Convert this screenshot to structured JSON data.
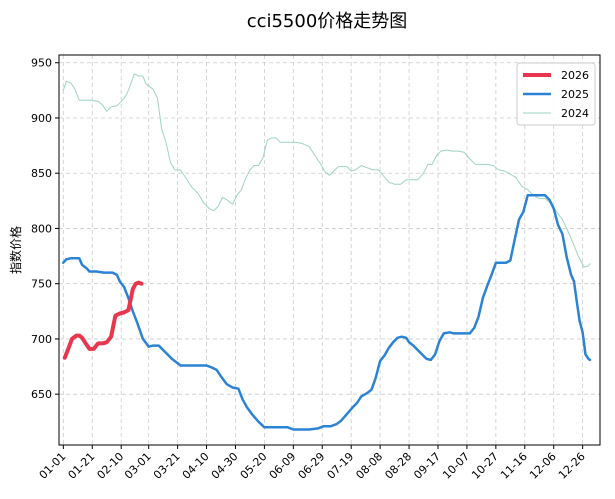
{
  "chart_data": {
    "type": "line",
    "title": "cci5500价格走势图",
    "xlabel": "",
    "ylabel": "指数价格",
    "x_ticks": [
      "01-01",
      "01-21",
      "02-10",
      "03-01",
      "03-21",
      "04-10",
      "04-30",
      "05-20",
      "06-09",
      "06-29",
      "07-19",
      "08-08",
      "08-28",
      "09-17",
      "10-07",
      "10-27",
      "11-16",
      "12-06",
      "12-26"
    ],
    "x_domain": [
      "01-01",
      "12-31"
    ],
    "y_ticks": [
      650,
      700,
      750,
      800,
      850,
      900,
      950
    ],
    "ylim": [
      604,
      957
    ],
    "grid": true,
    "legend_position": "top-right",
    "series": [
      {
        "name": "2026",
        "color": "#e8364f",
        "line_width": 4,
        "points": [
          [
            "01-02",
            683
          ],
          [
            "01-05",
            693
          ],
          [
            "01-07",
            700
          ],
          [
            "01-10",
            703
          ],
          [
            "01-12",
            703
          ],
          [
            "01-14",
            701
          ],
          [
            "01-16",
            697
          ],
          [
            "01-19",
            691
          ],
          [
            "01-22",
            691
          ],
          [
            "01-25",
            696
          ],
          [
            "01-28",
            696
          ],
          [
            "01-31",
            697
          ],
          [
            "02-03",
            702
          ],
          [
            "02-06",
            721
          ],
          [
            "02-09",
            723
          ],
          [
            "02-12",
            724
          ],
          [
            "02-15",
            726
          ],
          [
            "02-18",
            745
          ],
          [
            "02-20",
            750
          ],
          [
            "02-22",
            751
          ],
          [
            "02-24",
            750
          ]
        ]
      },
      {
        "name": "2025",
        "color": "#2b83d6",
        "line_width": 2.5,
        "points": [
          [
            "01-01",
            769
          ],
          [
            "01-03",
            772
          ],
          [
            "01-06",
            773
          ],
          [
            "01-08",
            773
          ],
          [
            "01-12",
            773
          ],
          [
            "01-14",
            767
          ],
          [
            "01-17",
            764
          ],
          [
            "01-19",
            761
          ],
          [
            "01-24",
            761
          ],
          [
            "01-29",
            760
          ],
          [
            "02-04",
            760
          ],
          [
            "02-07",
            758
          ],
          [
            "02-09",
            752
          ],
          [
            "02-12",
            747
          ],
          [
            "02-15",
            737
          ],
          [
            "02-18",
            725
          ],
          [
            "02-21",
            715
          ],
          [
            "02-25",
            700
          ],
          [
            "03-01",
            693
          ],
          [
            "03-04",
            694
          ],
          [
            "03-08",
            694
          ],
          [
            "03-11",
            690
          ],
          [
            "03-14",
            686
          ],
          [
            "03-17",
            682
          ],
          [
            "03-20",
            679
          ],
          [
            "03-23",
            676
          ],
          [
            "03-28",
            676
          ],
          [
            "04-04",
            676
          ],
          [
            "04-10",
            676
          ],
          [
            "04-14",
            674
          ],
          [
            "04-17",
            672
          ],
          [
            "04-20",
            666
          ],
          [
            "04-24",
            659
          ],
          [
            "04-28",
            656
          ],
          [
            "05-02",
            655
          ],
          [
            "05-05",
            645
          ],
          [
            "05-08",
            638
          ],
          [
            "05-12",
            631
          ],
          [
            "05-16",
            625
          ],
          [
            "05-20",
            620
          ],
          [
            "05-28",
            620
          ],
          [
            "06-05",
            620
          ],
          [
            "06-09",
            618
          ],
          [
            "06-14",
            618
          ],
          [
            "06-20",
            618
          ],
          [
            "06-26",
            619
          ],
          [
            "06-30",
            621
          ],
          [
            "07-05",
            621
          ],
          [
            "07-09",
            623
          ],
          [
            "07-12",
            626
          ],
          [
            "07-16",
            632
          ],
          [
            "07-20",
            638
          ],
          [
            "07-23",
            642
          ],
          [
            "07-26",
            648
          ],
          [
            "07-30",
            651
          ],
          [
            "08-02",
            654
          ],
          [
            "08-05",
            665
          ],
          [
            "08-08",
            680
          ],
          [
            "08-11",
            685
          ],
          [
            "08-14",
            692
          ],
          [
            "08-17",
            697
          ],
          [
            "08-20",
            701
          ],
          [
            "08-23",
            702
          ],
          [
            "08-26",
            701
          ],
          [
            "08-28",
            697
          ],
          [
            "08-31",
            694
          ],
          [
            "09-03",
            690
          ],
          [
            "09-06",
            686
          ],
          [
            "09-09",
            682
          ],
          [
            "09-12",
            681
          ],
          [
            "09-15",
            686
          ],
          [
            "09-18",
            698
          ],
          [
            "09-21",
            705
          ],
          [
            "09-25",
            706
          ],
          [
            "09-28",
            705
          ],
          [
            "10-01",
            705
          ],
          [
            "10-05",
            705
          ],
          [
            "10-09",
            705
          ],
          [
            "10-12",
            710
          ],
          [
            "10-15",
            720
          ],
          [
            "10-18",
            737
          ],
          [
            "10-21",
            748
          ],
          [
            "10-24",
            758
          ],
          [
            "10-27",
            769
          ],
          [
            "10-31",
            769
          ],
          [
            "11-03",
            769
          ],
          [
            "11-06",
            771
          ],
          [
            "11-09",
            790
          ],
          [
            "11-12",
            808
          ],
          [
            "11-15",
            815
          ],
          [
            "11-18",
            830
          ],
          [
            "11-22",
            830
          ],
          [
            "11-26",
            830
          ],
          [
            "11-30",
            830
          ],
          [
            "12-03",
            826
          ],
          [
            "12-06",
            818
          ],
          [
            "12-09",
            803
          ],
          [
            "12-12",
            795
          ],
          [
            "12-15",
            774
          ],
          [
            "12-18",
            758
          ],
          [
            "12-20",
            752
          ],
          [
            "12-22",
            733
          ],
          [
            "12-24",
            716
          ],
          [
            "12-26",
            706
          ],
          [
            "12-28",
            686
          ],
          [
            "12-30",
            682
          ],
          [
            "12-31",
            681
          ]
        ]
      },
      {
        "name": "2024",
        "color": "#9fd5be",
        "line_width": 1,
        "points": [
          [
            "01-01",
            925
          ],
          [
            "01-03",
            933
          ],
          [
            "01-06",
            932
          ],
          [
            "01-09",
            926
          ],
          [
            "01-12",
            916
          ],
          [
            "01-16",
            916
          ],
          [
            "01-20",
            916
          ],
          [
            "01-25",
            915
          ],
          [
            "01-28",
            912
          ],
          [
            "01-31",
            906
          ],
          [
            "02-03",
            910
          ],
          [
            "02-07",
            911
          ],
          [
            "02-11",
            916
          ],
          [
            "02-14",
            922
          ],
          [
            "02-17",
            932
          ],
          [
            "02-19",
            940
          ],
          [
            "02-22",
            938
          ],
          [
            "02-25",
            938
          ],
          [
            "02-27",
            931
          ],
          [
            "03-01",
            929
          ],
          [
            "03-04",
            926
          ],
          [
            "03-07",
            918
          ],
          [
            "03-10",
            890
          ],
          [
            "03-13",
            878
          ],
          [
            "03-16",
            860
          ],
          [
            "03-19",
            853
          ],
          [
            "03-23",
            853
          ],
          [
            "03-27",
            845
          ],
          [
            "03-31",
            837
          ],
          [
            "04-04",
            832
          ],
          [
            "04-08",
            823
          ],
          [
            "04-12",
            818
          ],
          [
            "04-15",
            816
          ],
          [
            "04-18",
            820
          ],
          [
            "04-21",
            828
          ],
          [
            "04-24",
            826
          ],
          [
            "04-28",
            822
          ],
          [
            "05-01",
            830
          ],
          [
            "05-04",
            835
          ],
          [
            "05-07",
            845
          ],
          [
            "05-10",
            853
          ],
          [
            "05-13",
            857
          ],
          [
            "05-16",
            857
          ],
          [
            "05-19",
            864
          ],
          [
            "05-22",
            880
          ],
          [
            "05-25",
            882
          ],
          [
            "05-28",
            882
          ],
          [
            "05-31",
            878
          ],
          [
            "06-05",
            878
          ],
          [
            "06-10",
            878
          ],
          [
            "06-15",
            877
          ],
          [
            "06-20",
            874
          ],
          [
            "06-24",
            866
          ],
          [
            "06-28",
            858
          ],
          [
            "07-01",
            851
          ],
          [
            "07-04",
            848
          ],
          [
            "07-07",
            852
          ],
          [
            "07-10",
            856
          ],
          [
            "07-13",
            856
          ],
          [
            "07-16",
            856
          ],
          [
            "07-19",
            852
          ],
          [
            "07-22",
            853
          ],
          [
            "07-26",
            857
          ],
          [
            "07-30",
            855
          ],
          [
            "08-03",
            853
          ],
          [
            "08-07",
            853
          ],
          [
            "08-10",
            848
          ],
          [
            "08-14",
            842
          ],
          [
            "08-18",
            840
          ],
          [
            "08-22",
            840
          ],
          [
            "08-26",
            844
          ],
          [
            "08-30",
            844
          ],
          [
            "09-03",
            844
          ],
          [
            "09-07",
            850
          ],
          [
            "09-10",
            858
          ],
          [
            "09-13",
            858
          ],
          [
            "09-16",
            866
          ],
          [
            "09-19",
            870
          ],
          [
            "09-23",
            871
          ],
          [
            "09-27",
            870
          ],
          [
            "10-01",
            870
          ],
          [
            "10-05",
            869
          ],
          [
            "10-09",
            863
          ],
          [
            "10-13",
            858
          ],
          [
            "10-17",
            858
          ],
          [
            "10-21",
            858
          ],
          [
            "10-25",
            857
          ],
          [
            "10-29",
            853
          ],
          [
            "11-02",
            852
          ],
          [
            "11-06",
            849
          ],
          [
            "11-10",
            846
          ],
          [
            "11-14",
            838
          ],
          [
            "11-18",
            835
          ],
          [
            "11-22",
            830
          ],
          [
            "11-26",
            827
          ],
          [
            "11-30",
            827
          ],
          [
            "12-04",
            823
          ],
          [
            "12-08",
            815
          ],
          [
            "12-12",
            808
          ],
          [
            "12-15",
            800
          ],
          [
            "12-19",
            788
          ],
          [
            "12-23",
            775
          ],
          [
            "12-27",
            765
          ],
          [
            "12-30",
            766
          ],
          [
            "12-31",
            768
          ]
        ]
      }
    ]
  }
}
